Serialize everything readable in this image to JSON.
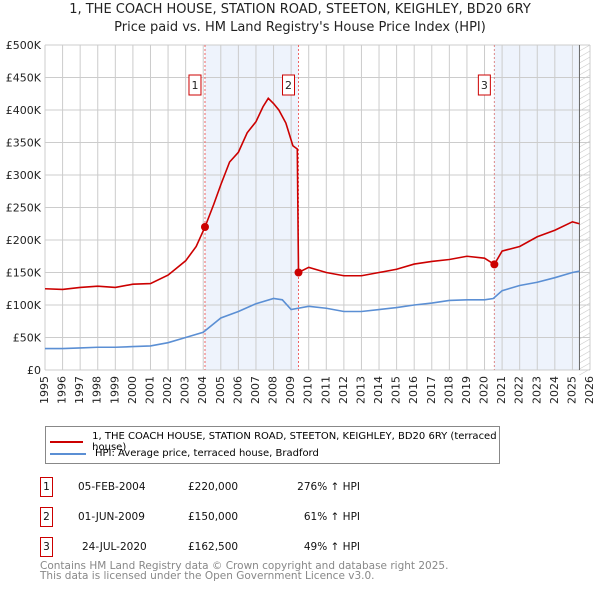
{
  "chart_data": {
    "type": "line",
    "title": "1, THE COACH HOUSE, STATION ROAD, STEETON, KEIGHLEY, BD20 6RY",
    "subtitle": "Price paid vs. HM Land Registry's House Price Index (HPI)",
    "xlim": [
      1995,
      2026
    ],
    "ylim": [
      0,
      500000
    ],
    "yticks": [
      0,
      50000,
      100000,
      150000,
      200000,
      250000,
      300000,
      350000,
      400000,
      450000,
      500000
    ],
    "ytick_labels": [
      "£0",
      "£50K",
      "£100K",
      "£150K",
      "£200K",
      "£250K",
      "£300K",
      "£350K",
      "£400K",
      "£450K",
      "£500K"
    ],
    "xticks": [
      "1995",
      "1996",
      "1997",
      "1998",
      "1999",
      "2000",
      "2001",
      "2002",
      "2003",
      "2004",
      "2005",
      "2006",
      "2007",
      "2008",
      "2009",
      "2010",
      "2011",
      "2012",
      "2013",
      "2014",
      "2015",
      "2016",
      "2017",
      "2018",
      "2019",
      "2020",
      "2021",
      "2022",
      "2023",
      "2024",
      "2025",
      "2026"
    ],
    "grid": true,
    "series": [
      {
        "name": "1, THE COACH HOUSE, STATION ROAD, STEETON, KEIGHLEY, BD20 6RY (terraced house)",
        "color": "#cc0000",
        "x": [
          1995,
          1996,
          1997,
          1998,
          1999,
          2000,
          2001,
          2002,
          2003,
          2003.6,
          2004.1,
          2004.6,
          2005,
          2005.5,
          2006,
          2006.5,
          2007,
          2007.4,
          2007.7,
          2008,
          2008.3,
          2008.7,
          2009.1,
          2009.35,
          2009.42,
          2010,
          2011,
          2012,
          2013,
          2014,
          2015,
          2016,
          2017,
          2018,
          2019,
          2020,
          2020.56,
          2021,
          2022,
          2023,
          2024,
          2025,
          2025.4
        ],
        "y": [
          125000,
          124000,
          127000,
          129000,
          127000,
          132000,
          133000,
          146000,
          168000,
          190000,
          220000,
          255000,
          285000,
          320000,
          335000,
          365000,
          382000,
          405000,
          418000,
          410000,
          400000,
          380000,
          345000,
          340000,
          150000,
          158000,
          150000,
          145000,
          145000,
          150000,
          155000,
          163000,
          167000,
          170000,
          175000,
          172000,
          162500,
          183000,
          190000,
          205000,
          215000,
          228000,
          225000
        ]
      },
      {
        "name": "HPI: Average price, terraced house, Bradford",
        "color": "#5b8fd4",
        "x": [
          1995,
          1996,
          1997,
          1998,
          1999,
          2000,
          2001,
          2002,
          2003,
          2004,
          2005,
          2006,
          2007,
          2008,
          2008.5,
          2009,
          2010,
          2011,
          2012,
          2013,
          2014,
          2015,
          2016,
          2017,
          2018,
          2019,
          2020,
          2020.5,
          2021,
          2022,
          2023,
          2024,
          2025,
          2025.4
        ],
        "y": [
          33000,
          33000,
          34000,
          35000,
          35000,
          36000,
          37000,
          42000,
          50000,
          58000,
          80000,
          90000,
          102000,
          110000,
          108000,
          93000,
          98000,
          95000,
          90000,
          90000,
          93000,
          96000,
          100000,
          103000,
          107000,
          108000,
          108000,
          110000,
          122000,
          130000,
          135000,
          142000,
          150000,
          152000
        ]
      }
    ],
    "sales": [
      {
        "label": "1",
        "x": 2004.1,
        "y": 220000,
        "date": "05-FEB-2004",
        "price": "£220,000",
        "hpi": "276% ↑ HPI"
      },
      {
        "label": "2",
        "x": 2009.42,
        "y": 150000,
        "date": "01-JUN-2009",
        "price": "£150,000",
        "hpi": "61% ↑ HPI"
      },
      {
        "label": "3",
        "x": 2020.56,
        "y": 162500,
        "date": "24-JUL-2020",
        "price": "£162,500",
        "hpi": "49% ↑ HPI"
      }
    ],
    "shaded": [
      [
        2004.1,
        2009.42
      ],
      [
        2020.56,
        2025.4
      ]
    ]
  },
  "footer": {
    "line1": "Contains HM Land Registry data © Crown copyright and database right 2025.",
    "line2": "This data is licensed under the Open Government Licence v3.0."
  }
}
